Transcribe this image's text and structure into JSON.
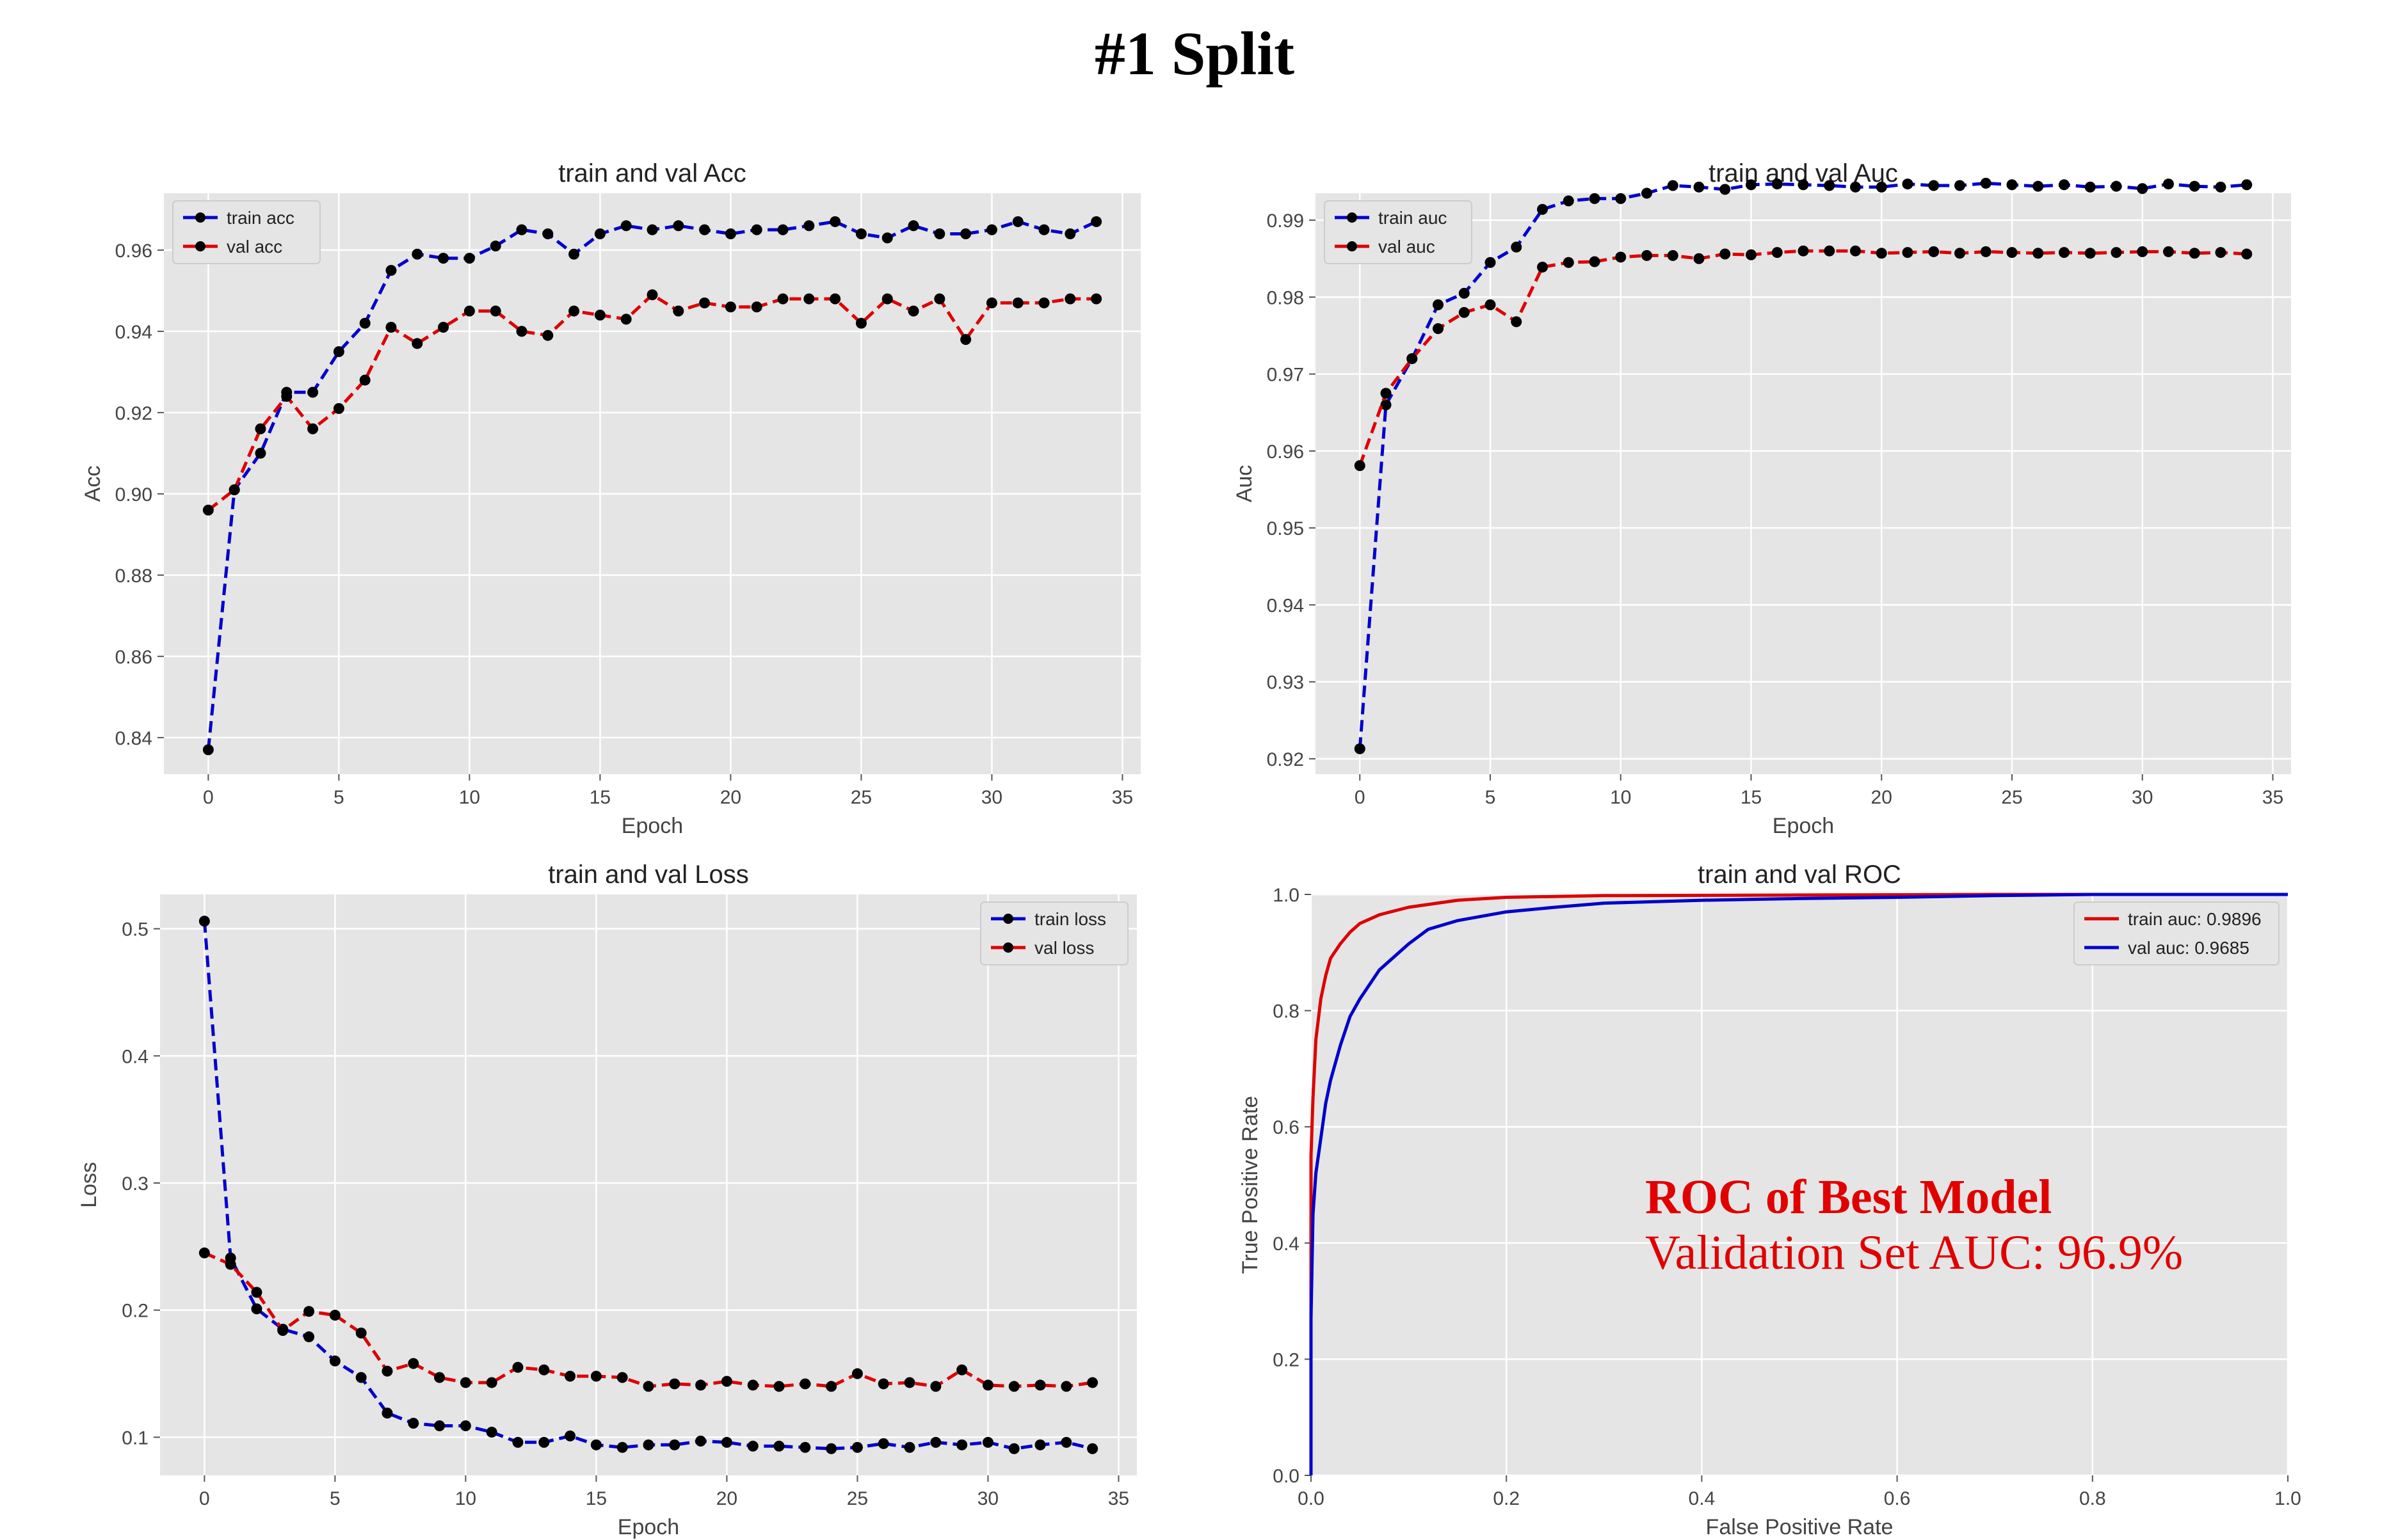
{
  "page_title": "#1 Split",
  "chart_data": [
    {
      "type": "line",
      "title": "train and val Acc",
      "xlabel": "Epoch",
      "ylabel": "Acc",
      "xlim": [
        -1.7,
        35.7
      ],
      "ylim": [
        0.831,
        0.974
      ],
      "xticks": [
        0,
        5,
        10,
        15,
        20,
        25,
        30,
        35
      ],
      "yticks": [
        0.84,
        0.86,
        0.88,
        0.9,
        0.92,
        0.94,
        0.96
      ],
      "ytick_decimals": 2,
      "grid": true,
      "legend_position": "top-left",
      "x": [
        0,
        1,
        2,
        3,
        4,
        5,
        6,
        7,
        8,
        9,
        10,
        11,
        12,
        13,
        14,
        15,
        16,
        17,
        18,
        19,
        20,
        21,
        22,
        23,
        24,
        25,
        26,
        27,
        28,
        29,
        30,
        31,
        32,
        33,
        34
      ],
      "series": [
        {
          "name": "train acc",
          "color": "#0000cc",
          "values": [
            0.837,
            0.901,
            0.91,
            0.925,
            0.925,
            0.935,
            0.942,
            0.955,
            0.959,
            0.958,
            0.958,
            0.961,
            0.965,
            0.964,
            0.959,
            0.964,
            0.966,
            0.965,
            0.966,
            0.965,
            0.964,
            0.965,
            0.965,
            0.966,
            0.967,
            0.964,
            0.963,
            0.966,
            0.964,
            0.964,
            0.965,
            0.967,
            0.965,
            0.964,
            0.967
          ]
        },
        {
          "name": "val acc",
          "color": "#dd0000",
          "values": [
            0.896,
            0.901,
            0.916,
            0.924,
            0.916,
            0.921,
            0.928,
            0.941,
            0.937,
            0.941,
            0.945,
            0.945,
            0.94,
            0.939,
            0.945,
            0.944,
            0.943,
            0.949,
            0.945,
            0.947,
            0.946,
            0.946,
            0.948,
            0.948,
            0.948,
            0.942,
            0.948,
            0.945,
            0.948,
            0.938,
            0.947,
            0.947,
            0.947,
            0.948,
            0.948
          ]
        }
      ]
    },
    {
      "type": "line",
      "title": "train and val Auc",
      "xlabel": "Epoch",
      "ylabel": "Auc",
      "xlim": [
        -1.7,
        35.7
      ],
      "ylim": [
        0.918,
        0.9935
      ],
      "xticks": [
        0,
        5,
        10,
        15,
        20,
        25,
        30,
        35
      ],
      "yticks": [
        0.92,
        0.93,
        0.94,
        0.95,
        0.96,
        0.97,
        0.98,
        0.99
      ],
      "ytick_decimals": 2,
      "grid": true,
      "legend_position": "top-left",
      "x": [
        0,
        1,
        2,
        3,
        4,
        5,
        6,
        7,
        8,
        9,
        10,
        11,
        12,
        13,
        14,
        15,
        16,
        17,
        18,
        19,
        20,
        21,
        22,
        23,
        24,
        25,
        26,
        27,
        28,
        29,
        30,
        31,
        32,
        33,
        34
      ],
      "series": [
        {
          "name": "train auc",
          "color": "#0000cc",
          "values": [
            0.9213,
            0.966,
            0.972,
            0.979,
            0.9805,
            0.9845,
            0.9865,
            0.9914,
            0.9925,
            0.9928,
            0.9928,
            0.9935,
            0.9945,
            0.9943,
            0.994,
            0.9946,
            0.9947,
            0.9946,
            0.9945,
            0.9943,
            0.9943,
            0.9947,
            0.9945,
            0.9945,
            0.9948,
            0.9946,
            0.9944,
            0.9946,
            0.9943,
            0.9944,
            0.9941,
            0.9947,
            0.9944,
            0.9943,
            0.9946
          ]
        },
        {
          "name": "val auc",
          "color": "#dd0000",
          "values": [
            0.9581,
            0.9675,
            0.972,
            0.9759,
            0.978,
            0.979,
            0.9768,
            0.9839,
            0.9845,
            0.9846,
            0.9852,
            0.9854,
            0.9854,
            0.985,
            0.9856,
            0.9855,
            0.9858,
            0.986,
            0.986,
            0.986,
            0.9857,
            0.9858,
            0.9859,
            0.9857,
            0.9859,
            0.9858,
            0.9857,
            0.9858,
            0.9857,
            0.9858,
            0.9859,
            0.9859,
            0.9857,
            0.9858,
            0.9856
          ]
        }
      ]
    },
    {
      "type": "line",
      "title": "train and val Loss",
      "xlabel": "Epoch",
      "ylabel": "Loss",
      "xlim": [
        -1.7,
        35.7
      ],
      "ylim": [
        0.07,
        0.527
      ],
      "xticks": [
        0,
        5,
        10,
        15,
        20,
        25,
        30,
        35
      ],
      "yticks": [
        0.1,
        0.2,
        0.3,
        0.4,
        0.5
      ],
      "ytick_decimals": 1,
      "grid": true,
      "legend_position": "top-right",
      "x": [
        0,
        1,
        2,
        3,
        4,
        5,
        6,
        7,
        8,
        9,
        10,
        11,
        12,
        13,
        14,
        15,
        16,
        17,
        18,
        19,
        20,
        21,
        22,
        23,
        24,
        25,
        26,
        27,
        28,
        29,
        30,
        31,
        32,
        33,
        34
      ],
      "series": [
        {
          "name": "train loss",
          "color": "#0000cc",
          "values": [
            0.506,
            0.241,
            0.201,
            0.185,
            0.179,
            0.16,
            0.147,
            0.119,
            0.111,
            0.109,
            0.109,
            0.104,
            0.096,
            0.096,
            0.101,
            0.094,
            0.092,
            0.094,
            0.094,
            0.097,
            0.096,
            0.093,
            0.093,
            0.092,
            0.091,
            0.092,
            0.095,
            0.092,
            0.096,
            0.094,
            0.096,
            0.091,
            0.094,
            0.096,
            0.091
          ]
        },
        {
          "name": "val loss",
          "color": "#dd0000",
          "values": [
            0.245,
            0.236,
            0.214,
            0.184,
            0.199,
            0.196,
            0.182,
            0.152,
            0.158,
            0.147,
            0.143,
            0.143,
            0.155,
            0.153,
            0.148,
            0.148,
            0.147,
            0.14,
            0.142,
            0.141,
            0.144,
            0.141,
            0.14,
            0.142,
            0.14,
            0.15,
            0.142,
            0.143,
            0.14,
            0.153,
            0.141,
            0.14,
            0.141,
            0.14,
            0.143
          ]
        }
      ]
    },
    {
      "type": "line",
      "title": "train and val ROC",
      "xlabel": "False Positive Rate",
      "ylabel": "True Positive Rate",
      "xlim": [
        0,
        1
      ],
      "ylim": [
        0,
        1
      ],
      "xticks": [
        0.0,
        0.2,
        0.4,
        0.6,
        0.8,
        1.0
      ],
      "yticks": [
        0.0,
        0.2,
        0.4,
        0.6,
        0.8,
        1.0
      ],
      "ytick_decimals": 1,
      "grid": true,
      "legend_position": "top-right",
      "series": [
        {
          "name": "train auc: 0.9896",
          "color": "#dd0000",
          "x": [
            0,
            0,
            0.002,
            0.005,
            0.01,
            0.015,
            0.02,
            0.03,
            0.04,
            0.05,
            0.07,
            0.1,
            0.15,
            0.2,
            0.3,
            0.5,
            0.7,
            1.0
          ],
          "y": [
            0,
            0.55,
            0.65,
            0.75,
            0.82,
            0.86,
            0.89,
            0.915,
            0.935,
            0.95,
            0.965,
            0.978,
            0.99,
            0.995,
            0.998,
            0.999,
            1.0,
            1.0
          ]
        },
        {
          "name": "val auc: 0.9685",
          "color": "#0000cc",
          "x": [
            0,
            0,
            0.002,
            0.005,
            0.01,
            0.015,
            0.02,
            0.03,
            0.04,
            0.05,
            0.07,
            0.1,
            0.12,
            0.15,
            0.2,
            0.25,
            0.3,
            0.4,
            0.5,
            0.6,
            0.7,
            0.8,
            1.0
          ],
          "y": [
            0,
            0.27,
            0.45,
            0.52,
            0.58,
            0.64,
            0.68,
            0.74,
            0.79,
            0.82,
            0.87,
            0.915,
            0.94,
            0.955,
            0.97,
            0.978,
            0.985,
            0.99,
            0.993,
            0.995,
            0.998,
            1.0,
            1.0
          ]
        }
      ],
      "annotation": {
        "heading": "ROC of Best Model",
        "text": "Validation Set AUC: 96.9%"
      }
    }
  ]
}
